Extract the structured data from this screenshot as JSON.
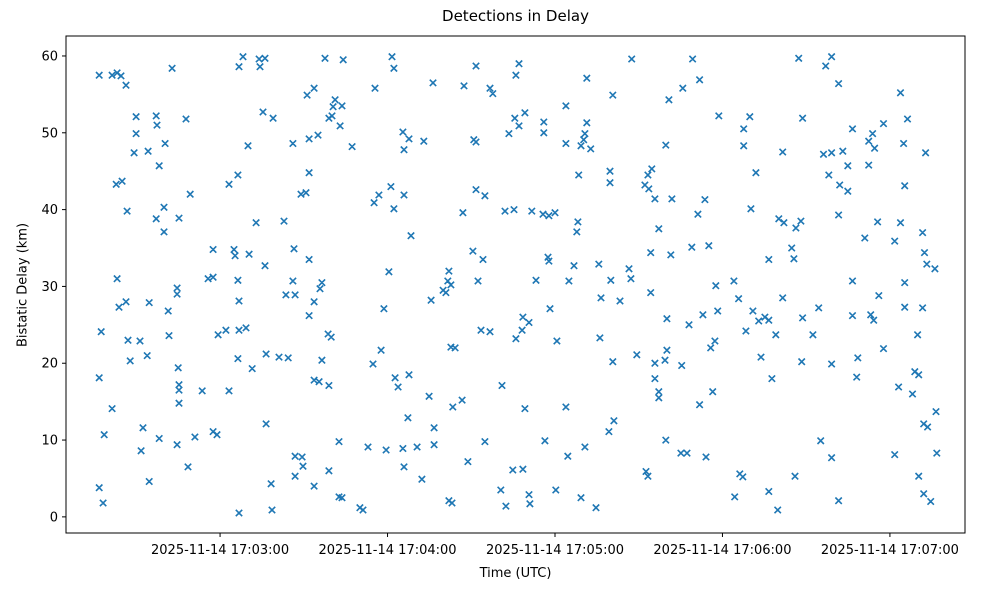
{
  "chart_data": {
    "type": "scatter",
    "title": "Detections in Delay",
    "xlabel": "Time (UTC)",
    "ylabel": "Bistatic Delay (km)",
    "marker": "x",
    "marker_color": "#1f77b4",
    "grid": false,
    "x_unit": "seconds after 2025-11-14 17:00:00 UTC",
    "xlim_s": [
      124.8,
      446.9
    ],
    "ylim": [
      -2.1,
      62.6
    ],
    "x_ticks": [
      {
        "s": 180,
        "label": "2025-11-14 17:03:00"
      },
      {
        "s": 240,
        "label": "2025-11-14 17:04:00"
      },
      {
        "s": 300,
        "label": "2025-11-14 17:05:00"
      },
      {
        "s": 360,
        "label": "2025-11-14 17:06:00"
      },
      {
        "s": 420,
        "label": "2025-11-14 17:07:00"
      }
    ],
    "y_ticks": [
      0,
      10,
      20,
      30,
      40,
      50,
      60
    ],
    "points_s_km": [
      [
        136.7,
        57.5
      ],
      [
        141.3,
        57.5
      ],
      [
        143.1,
        57.8
      ],
      [
        144.5,
        57.4
      ],
      [
        146.3,
        56.2
      ],
      [
        162.8,
        58.4
      ],
      [
        188.2,
        59.9
      ],
      [
        186.8,
        58.6
      ],
      [
        194.0,
        59.6
      ],
      [
        196.1,
        59.7
      ],
      [
        194.3,
        58.6
      ],
      [
        217.6,
        59.7
      ],
      [
        224.1,
        59.5
      ],
      [
        213.7,
        55.8
      ],
      [
        211.2,
        54.9
      ],
      [
        221.2,
        54.3
      ],
      [
        220.5,
        53.4
      ],
      [
        223.7,
        53.5
      ],
      [
        220.1,
        52.2
      ],
      [
        195.4,
        52.7
      ],
      [
        199.0,
        51.9
      ],
      [
        219.0,
        51.9
      ],
      [
        223.0,
        50.9
      ],
      [
        149.9,
        52.1
      ],
      [
        157.1,
        52.2
      ],
      [
        157.4,
        51.0
      ],
      [
        167.8,
        51.8
      ],
      [
        149.9,
        49.9
      ],
      [
        160.3,
        48.6
      ],
      [
        149.2,
        47.4
      ],
      [
        154.2,
        47.6
      ],
      [
        190.0,
        48.3
      ],
      [
        206.1,
        48.6
      ],
      [
        211.9,
        49.2
      ],
      [
        215.1,
        49.7
      ],
      [
        227.3,
        48.2
      ],
      [
        241.6,
        59.9
      ],
      [
        242.3,
        58.4
      ],
      [
        235.5,
        55.8
      ],
      [
        256.3,
        56.5
      ],
      [
        267.4,
        56.1
      ],
      [
        271.7,
        58.7
      ],
      [
        276.7,
        55.8
      ],
      [
        277.7,
        55.1
      ],
      [
        287.1,
        59.0
      ],
      [
        286.0,
        57.5
      ],
      [
        303.9,
        53.5
      ],
      [
        311.4,
        57.1
      ],
      [
        320.7,
        54.9
      ],
      [
        327.5,
        59.6
      ],
      [
        289.2,
        52.6
      ],
      [
        285.6,
        51.9
      ],
      [
        287.1,
        50.9
      ],
      [
        283.5,
        49.9
      ],
      [
        296.0,
        51.4
      ],
      [
        296.0,
        50.0
      ],
      [
        303.9,
        48.6
      ],
      [
        311.4,
        51.3
      ],
      [
        310.7,
        49.9
      ],
      [
        310.3,
        49.1
      ],
      [
        309.3,
        48.3
      ],
      [
        312.8,
        47.9
      ],
      [
        245.5,
        50.1
      ],
      [
        247.7,
        49.2
      ],
      [
        253.0,
        48.9
      ],
      [
        245.9,
        47.8
      ],
      [
        270.9,
        49.1
      ],
      [
        271.7,
        48.8
      ],
      [
        349.3,
        59.6
      ],
      [
        351.8,
        56.9
      ],
      [
        345.8,
        55.8
      ],
      [
        340.8,
        54.3
      ],
      [
        387.3,
        59.7
      ],
      [
        399.1,
        59.9
      ],
      [
        397.0,
        58.7
      ],
      [
        401.6,
        56.4
      ],
      [
        423.8,
        55.2
      ],
      [
        358.7,
        52.2
      ],
      [
        369.8,
        52.1
      ],
      [
        367.6,
        50.5
      ],
      [
        388.7,
        51.9
      ],
      [
        426.3,
        51.8
      ],
      [
        406.6,
        50.5
      ],
      [
        413.8,
        49.9
      ],
      [
        417.7,
        51.2
      ],
      [
        412.4,
        48.9
      ],
      [
        414.5,
        48.0
      ],
      [
        367.6,
        48.3
      ],
      [
        381.6,
        47.5
      ],
      [
        396.2,
        47.2
      ],
      [
        399.1,
        47.4
      ],
      [
        403.1,
        47.6
      ],
      [
        424.9,
        48.6
      ],
      [
        432.8,
        47.4
      ],
      [
        339.7,
        48.4
      ],
      [
        158.2,
        45.7
      ],
      [
        142.8,
        43.3
      ],
      [
        144.9,
        43.7
      ],
      [
        186.4,
        44.5
      ],
      [
        183.2,
        43.3
      ],
      [
        211.9,
        44.8
      ],
      [
        209.0,
        42.0
      ],
      [
        210.8,
        42.2
      ],
      [
        169.3,
        42.0
      ],
      [
        159.9,
        40.3
      ],
      [
        157.1,
        38.8
      ],
      [
        165.3,
        38.9
      ],
      [
        146.7,
        39.8
      ],
      [
        159.9,
        37.1
      ],
      [
        192.9,
        38.3
      ],
      [
        202.9,
        38.5
      ],
      [
        177.5,
        34.8
      ],
      [
        185.0,
        34.8
      ],
      [
        185.4,
        34.0
      ],
      [
        190.4,
        34.2
      ],
      [
        206.5,
        34.9
      ],
      [
        211.9,
        33.5
      ],
      [
        196.1,
        32.7
      ],
      [
        143.1,
        31.0
      ],
      [
        175.7,
        31.0
      ],
      [
        177.5,
        31.2
      ],
      [
        186.4,
        30.8
      ],
      [
        206.1,
        30.7
      ],
      [
        216.5,
        30.5
      ],
      [
        241.2,
        43.0
      ],
      [
        245.9,
        41.9
      ],
      [
        236.9,
        41.9
      ],
      [
        235.2,
        40.9
      ],
      [
        242.3,
        40.1
      ],
      [
        271.7,
        42.6
      ],
      [
        274.9,
        41.8
      ],
      [
        267.0,
        39.6
      ],
      [
        282.1,
        39.8
      ],
      [
        285.3,
        40.0
      ],
      [
        291.7,
        39.8
      ],
      [
        295.7,
        39.4
      ],
      [
        297.8,
        39.2
      ],
      [
        300.0,
        39.6
      ],
      [
        308.5,
        44.5
      ],
      [
        319.7,
        45.0
      ],
      [
        319.7,
        43.5
      ],
      [
        333.3,
        44.5
      ],
      [
        334.7,
        45.3
      ],
      [
        332.2,
        43.2
      ],
      [
        333.6,
        42.7
      ],
      [
        335.8,
        41.4
      ],
      [
        308.2,
        38.4
      ],
      [
        307.8,
        37.1
      ],
      [
        337.2,
        37.5
      ],
      [
        248.4,
        36.6
      ],
      [
        270.6,
        34.6
      ],
      [
        274.2,
        33.5
      ],
      [
        297.5,
        33.8
      ],
      [
        297.8,
        33.3
      ],
      [
        306.8,
        32.7
      ],
      [
        315.7,
        32.9
      ],
      [
        334.3,
        34.4
      ],
      [
        326.5,
        32.3
      ],
      [
        240.5,
        31.9
      ],
      [
        262.0,
        32.0
      ],
      [
        261.6,
        30.7
      ],
      [
        262.7,
        30.2
      ],
      [
        272.4,
        30.7
      ],
      [
        293.2,
        30.8
      ],
      [
        305.0,
        30.7
      ],
      [
        320.0,
        30.8
      ],
      [
        327.2,
        31.0
      ],
      [
        372.0,
        44.8
      ],
      [
        398.1,
        44.5
      ],
      [
        402.0,
        43.2
      ],
      [
        404.9,
        42.4
      ],
      [
        404.9,
        45.7
      ],
      [
        412.4,
        45.8
      ],
      [
        425.3,
        43.1
      ],
      [
        341.9,
        41.4
      ],
      [
        353.7,
        41.3
      ],
      [
        351.2,
        39.4
      ],
      [
        370.2,
        40.1
      ],
      [
        380.2,
        38.8
      ],
      [
        382.0,
        38.3
      ],
      [
        386.3,
        37.6
      ],
      [
        388.1,
        38.5
      ],
      [
        401.6,
        39.3
      ],
      [
        415.6,
        38.4
      ],
      [
        411.0,
        36.3
      ],
      [
        423.8,
        38.3
      ],
      [
        421.7,
        35.9
      ],
      [
        431.7,
        37.0
      ],
      [
        349.0,
        35.1
      ],
      [
        355.1,
        35.3
      ],
      [
        341.5,
        34.1
      ],
      [
        384.8,
        35.0
      ],
      [
        376.6,
        33.5
      ],
      [
        385.6,
        33.6
      ],
      [
        432.4,
        34.4
      ],
      [
        433.2,
        32.9
      ],
      [
        436.1,
        32.3
      ],
      [
        364.1,
        30.7
      ],
      [
        406.6,
        30.7
      ],
      [
        425.3,
        30.5
      ],
      [
        357.6,
        30.1
      ],
      [
        143.8,
        27.3
      ],
      [
        146.3,
        28.0
      ],
      [
        154.6,
        27.9
      ],
      [
        164.6,
        29.8
      ],
      [
        164.6,
        29.0
      ],
      [
        161.4,
        26.8
      ],
      [
        186.8,
        28.1
      ],
      [
        203.6,
        28.9
      ],
      [
        206.9,
        28.9
      ],
      [
        213.7,
        28.0
      ],
      [
        215.8,
        29.7
      ],
      [
        211.9,
        26.2
      ],
      [
        137.4,
        24.1
      ],
      [
        147.0,
        23.0
      ],
      [
        151.3,
        22.9
      ],
      [
        161.7,
        23.6
      ],
      [
        179.3,
        23.7
      ],
      [
        182.1,
        24.3
      ],
      [
        186.8,
        24.3
      ],
      [
        189.3,
        24.6
      ],
      [
        218.7,
        23.8
      ],
      [
        219.8,
        23.4
      ],
      [
        147.8,
        20.3
      ],
      [
        153.9,
        21.0
      ],
      [
        186.4,
        20.6
      ],
      [
        191.5,
        19.3
      ],
      [
        196.5,
        21.2
      ],
      [
        201.1,
        20.8
      ],
      [
        204.4,
        20.7
      ],
      [
        216.5,
        20.4
      ],
      [
        165.0,
        19.4
      ],
      [
        136.7,
        18.1
      ],
      [
        213.7,
        17.8
      ],
      [
        215.5,
        17.6
      ],
      [
        219.0,
        17.1
      ],
      [
        165.3,
        17.2
      ],
      [
        165.3,
        16.5
      ],
      [
        173.6,
        16.4
      ],
      [
        183.2,
        16.4
      ],
      [
        165.3,
        14.8
      ],
      [
        141.3,
        14.1
      ],
      [
        255.6,
        28.2
      ],
      [
        259.9,
        29.5
      ],
      [
        260.9,
        29.2
      ],
      [
        238.7,
        27.1
      ],
      [
        273.5,
        24.3
      ],
      [
        276.7,
        24.1
      ],
      [
        288.5,
        26.0
      ],
      [
        290.7,
        25.3
      ],
      [
        288.2,
        24.3
      ],
      [
        286.0,
        23.2
      ],
      [
        298.2,
        27.1
      ],
      [
        300.7,
        22.9
      ],
      [
        237.7,
        21.7
      ],
      [
        234.8,
        19.9
      ],
      [
        262.7,
        22.1
      ],
      [
        264.2,
        22.0
      ],
      [
        316.5,
        28.5
      ],
      [
        323.3,
        28.1
      ],
      [
        334.3,
        29.2
      ],
      [
        316.1,
        23.3
      ],
      [
        320.7,
        20.2
      ],
      [
        329.3,
        21.1
      ],
      [
        335.8,
        20.0
      ],
      [
        242.7,
        18.1
      ],
      [
        247.7,
        18.5
      ],
      [
        243.8,
        16.9
      ],
      [
        254.9,
        15.7
      ],
      [
        281.0,
        17.1
      ],
      [
        266.7,
        15.2
      ],
      [
        263.4,
        14.3
      ],
      [
        289.2,
        14.1
      ],
      [
        303.9,
        14.3
      ],
      [
        335.8,
        18.0
      ],
      [
        337.2,
        16.3
      ],
      [
        337.2,
        15.5
      ],
      [
        365.8,
        28.4
      ],
      [
        370.9,
        26.8
      ],
      [
        381.6,
        28.5
      ],
      [
        353.0,
        26.3
      ],
      [
        358.3,
        26.8
      ],
      [
        340.1,
        25.8
      ],
      [
        348.0,
        25.0
      ],
      [
        368.4,
        24.2
      ],
      [
        373.0,
        25.5
      ],
      [
        375.2,
        26.0
      ],
      [
        376.6,
        25.6
      ],
      [
        379.1,
        23.7
      ],
      [
        388.7,
        25.9
      ],
      [
        394.5,
        27.2
      ],
      [
        392.4,
        23.7
      ],
      [
        406.6,
        26.2
      ],
      [
        413.1,
        26.3
      ],
      [
        414.2,
        25.6
      ],
      [
        416.0,
        28.8
      ],
      [
        425.3,
        27.3
      ],
      [
        431.7,
        27.2
      ],
      [
        429.9,
        23.7
      ],
      [
        357.3,
        22.9
      ],
      [
        355.8,
        22.0
      ],
      [
        339.4,
        20.4
      ],
      [
        340.1,
        21.7
      ],
      [
        345.4,
        19.7
      ],
      [
        373.8,
        20.8
      ],
      [
        377.7,
        18.0
      ],
      [
        388.4,
        20.2
      ],
      [
        399.1,
        19.9
      ],
      [
        408.5,
        20.7
      ],
      [
        408.1,
        18.2
      ],
      [
        417.7,
        21.9
      ],
      [
        423.1,
        16.9
      ],
      [
        428.1,
        16.0
      ],
      [
        428.9,
        18.9
      ],
      [
        430.3,
        18.5
      ],
      [
        356.5,
        16.3
      ],
      [
        351.8,
        14.6
      ],
      [
        138.5,
        10.7
      ],
      [
        152.4,
        11.6
      ],
      [
        158.2,
        10.2
      ],
      [
        151.7,
        8.6
      ],
      [
        164.6,
        9.4
      ],
      [
        171.0,
        10.4
      ],
      [
        177.5,
        11.1
      ],
      [
        178.9,
        10.7
      ],
      [
        168.5,
        6.5
      ],
      [
        154.6,
        4.6
      ],
      [
        136.7,
        3.8
      ],
      [
        138.1,
        1.8
      ],
      [
        196.5,
        12.1
      ],
      [
        186.8,
        0.5
      ],
      [
        198.6,
        0.9
      ],
      [
        198.3,
        4.3
      ],
      [
        206.9,
        7.9
      ],
      [
        209.4,
        7.8
      ],
      [
        209.7,
        6.6
      ],
      [
        206.9,
        5.3
      ],
      [
        213.7,
        4.0
      ],
      [
        219.0,
        6.0
      ],
      [
        222.6,
        9.8
      ],
      [
        222.6,
        2.6
      ],
      [
        223.7,
        2.5
      ],
      [
        230.1,
        1.2
      ],
      [
        231.2,
        0.9
      ],
      [
        247.3,
        12.9
      ],
      [
        256.7,
        11.6
      ],
      [
        256.7,
        9.4
      ],
      [
        233.0,
        9.1
      ],
      [
        239.5,
        8.7
      ],
      [
        245.5,
        8.9
      ],
      [
        250.6,
        9.1
      ],
      [
        274.9,
        9.8
      ],
      [
        268.8,
        7.2
      ],
      [
        245.9,
        6.5
      ],
      [
        252.3,
        4.9
      ],
      [
        284.9,
        6.1
      ],
      [
        288.5,
        6.2
      ],
      [
        296.4,
        9.9
      ],
      [
        304.6,
        7.9
      ],
      [
        310.7,
        9.1
      ],
      [
        319.3,
        11.1
      ],
      [
        321.1,
        12.5
      ],
      [
        280.6,
        3.5
      ],
      [
        282.4,
        1.4
      ],
      [
        290.7,
        2.9
      ],
      [
        291.0,
        1.7
      ],
      [
        300.3,
        3.5
      ],
      [
        309.3,
        2.5
      ],
      [
        314.7,
        1.2
      ],
      [
        262.0,
        2.1
      ],
      [
        263.1,
        1.8
      ],
      [
        332.6,
        5.9
      ],
      [
        333.3,
        5.3
      ],
      [
        339.7,
        10.0
      ],
      [
        345.1,
        8.3
      ],
      [
        347.3,
        8.3
      ],
      [
        354.1,
        7.8
      ],
      [
        366.2,
        5.6
      ],
      [
        367.3,
        5.2
      ],
      [
        364.4,
        2.6
      ],
      [
        376.6,
        3.3
      ],
      [
        379.8,
        0.9
      ],
      [
        386.0,
        5.3
      ],
      [
        395.2,
        9.9
      ],
      [
        399.1,
        7.7
      ],
      [
        401.6,
        2.1
      ],
      [
        421.7,
        8.1
      ],
      [
        430.3,
        5.3
      ],
      [
        432.1,
        3.0
      ],
      [
        434.6,
        2.0
      ],
      [
        432.1,
        12.1
      ],
      [
        433.5,
        11.7
      ],
      [
        436.5,
        13.7
      ],
      [
        436.8,
        8.3
      ]
    ]
  }
}
